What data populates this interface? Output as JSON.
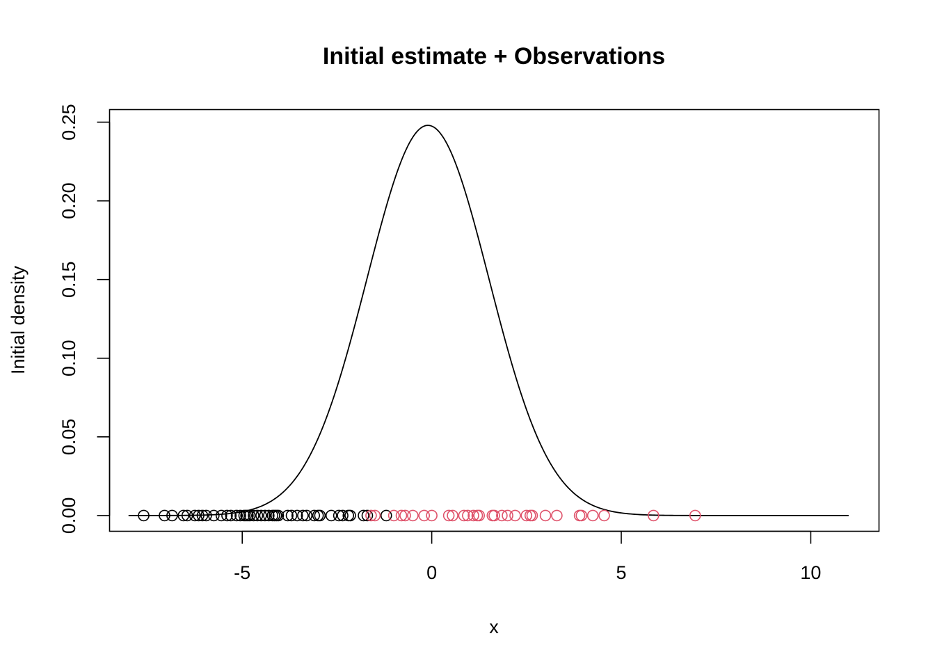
{
  "chart_data": {
    "type": "scatter",
    "title": "Initial estimate + Observations",
    "xlabel": "x",
    "ylabel": "Initial density",
    "xlim": [
      -8.5,
      11.8
    ],
    "ylim": [
      -0.01,
      0.258
    ],
    "x_ticks": [
      -5,
      0,
      5,
      10
    ],
    "x_tick_labels": [
      "-5",
      "0",
      "5",
      "10"
    ],
    "y_ticks": [
      0.0,
      0.05,
      0.1,
      0.15,
      0.2,
      0.25
    ],
    "y_tick_labels": [
      "0.00",
      "0.05",
      "0.10",
      "0.15",
      "0.20",
      "0.25"
    ],
    "grid": false,
    "density_curve": {
      "shape": "normal",
      "mean": -0.1,
      "peak": 0.248,
      "sd": 1.61,
      "x_range": [
        -8.0,
        11.0
      ],
      "color": "#000000"
    },
    "series": [
      {
        "color": "#000000",
        "y": 0,
        "x": [
          -7.6,
          -7.05,
          -6.85,
          -6.55,
          -6.45,
          -6.25,
          -6.15,
          -6.05,
          -5.95,
          -5.75,
          -5.55,
          -5.4,
          -5.3,
          -5.15,
          -5.05,
          -4.95,
          -4.9,
          -4.85,
          -4.8,
          -4.7,
          -4.6,
          -4.5,
          -4.4,
          -4.3,
          -4.2,
          -4.15,
          -4.1,
          -4.05,
          -3.8,
          -3.7,
          -3.55,
          -3.4,
          -3.3,
          -3.1,
          -3.0,
          -2.95,
          -2.65,
          -2.45,
          -2.35,
          -2.2,
          -2.15,
          -1.8,
          -1.7,
          -1.2
        ]
      },
      {
        "color": "#DF536B",
        "y": 0,
        "x": [
          -1.6,
          -1.5,
          -1.0,
          -0.8,
          -0.7,
          -0.5,
          -0.2,
          0.0,
          0.45,
          0.55,
          0.85,
          0.95,
          1.1,
          1.2,
          1.25,
          1.6,
          1.65,
          1.85,
          2.0,
          2.2,
          2.5,
          2.6,
          2.65,
          3.0,
          3.3,
          3.9,
          3.95,
          4.25,
          4.55,
          5.85,
          6.95
        ]
      }
    ]
  }
}
